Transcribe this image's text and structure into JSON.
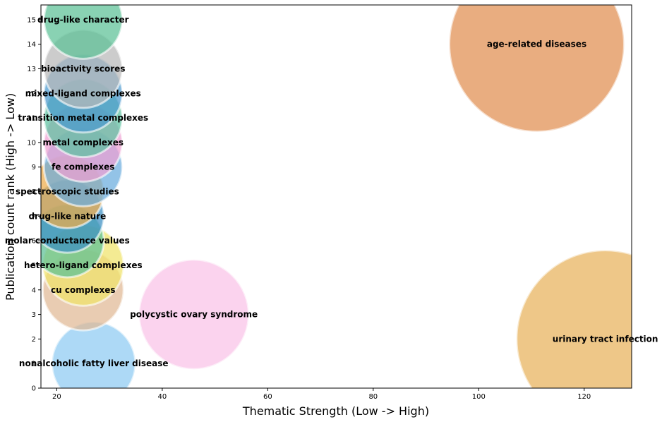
{
  "chart_data": {
    "type": "scatter",
    "xlabel": "Thematic Strength (Low -> High)",
    "ylabel": "Publication count rank (High -> Low)",
    "xlim": [
      17,
      129
    ],
    "ylim": [
      0,
      15.6
    ],
    "x_ticks": [
      20,
      40,
      60,
      80,
      100,
      120
    ],
    "y_ticks": [
      0,
      1,
      2,
      3,
      4,
      5,
      6,
      7,
      8,
      9,
      10,
      11,
      12,
      13,
      14,
      15
    ],
    "grid": false,
    "legend": "none",
    "points": [
      {
        "label": "urinary tract infection",
        "x": 124,
        "y": 2,
        "size": 3.4,
        "color": "#e8b25a"
      },
      {
        "label": "age-related diseases",
        "x": 111,
        "y": 14,
        "size": 3.35,
        "color": "#e08e4f"
      },
      {
        "label": "polycystic ovary syndrome",
        "x": 46,
        "y": 3,
        "size": 2.1,
        "color": "#f9c2e8"
      },
      {
        "label": "nonalcoholic fatty liver disease",
        "x": 27,
        "y": 1,
        "size": 1.6,
        "color": "#8ecbf2"
      },
      {
        "label": "cu complexes",
        "x": 25,
        "y": 4,
        "size": 1.55,
        "color": "#e0b894"
      },
      {
        "label": "hetero-ligand complexes",
        "x": 25,
        "y": 5,
        "size": 1.55,
        "color": "#f0e36a"
      },
      {
        "label": "molar conductance values",
        "x": 22,
        "y": 6,
        "size": 1.4,
        "color": "#5cc095"
      },
      {
        "label": "drug-like nature",
        "x": 22,
        "y": 7,
        "size": 1.4,
        "color": "#3b8fc4"
      },
      {
        "label": "spectroscopic studies",
        "x": 22,
        "y": 8,
        "size": 1.4,
        "color": "#eeac4a"
      },
      {
        "label": "fe complexes",
        "x": 25,
        "y": 9,
        "size": 1.5,
        "color": "#6aacde"
      },
      {
        "label": "metal complexes",
        "x": 25,
        "y": 10,
        "size": 1.5,
        "color": "#ef9fd2"
      },
      {
        "label": "transition metal complexes",
        "x": 25,
        "y": 11,
        "size": 1.5,
        "color": "#5cc0a0"
      },
      {
        "label": "mixed-ligand complexes",
        "x": 25,
        "y": 12,
        "size": 1.5,
        "color": "#4a98cf"
      },
      {
        "label": "bioactivity scores",
        "x": 25,
        "y": 13,
        "size": 1.5,
        "color": "#b8b8b8"
      },
      {
        "label": "drug-like character",
        "x": 25,
        "y": 15,
        "size": 1.5,
        "color": "#5cc095"
      }
    ]
  }
}
